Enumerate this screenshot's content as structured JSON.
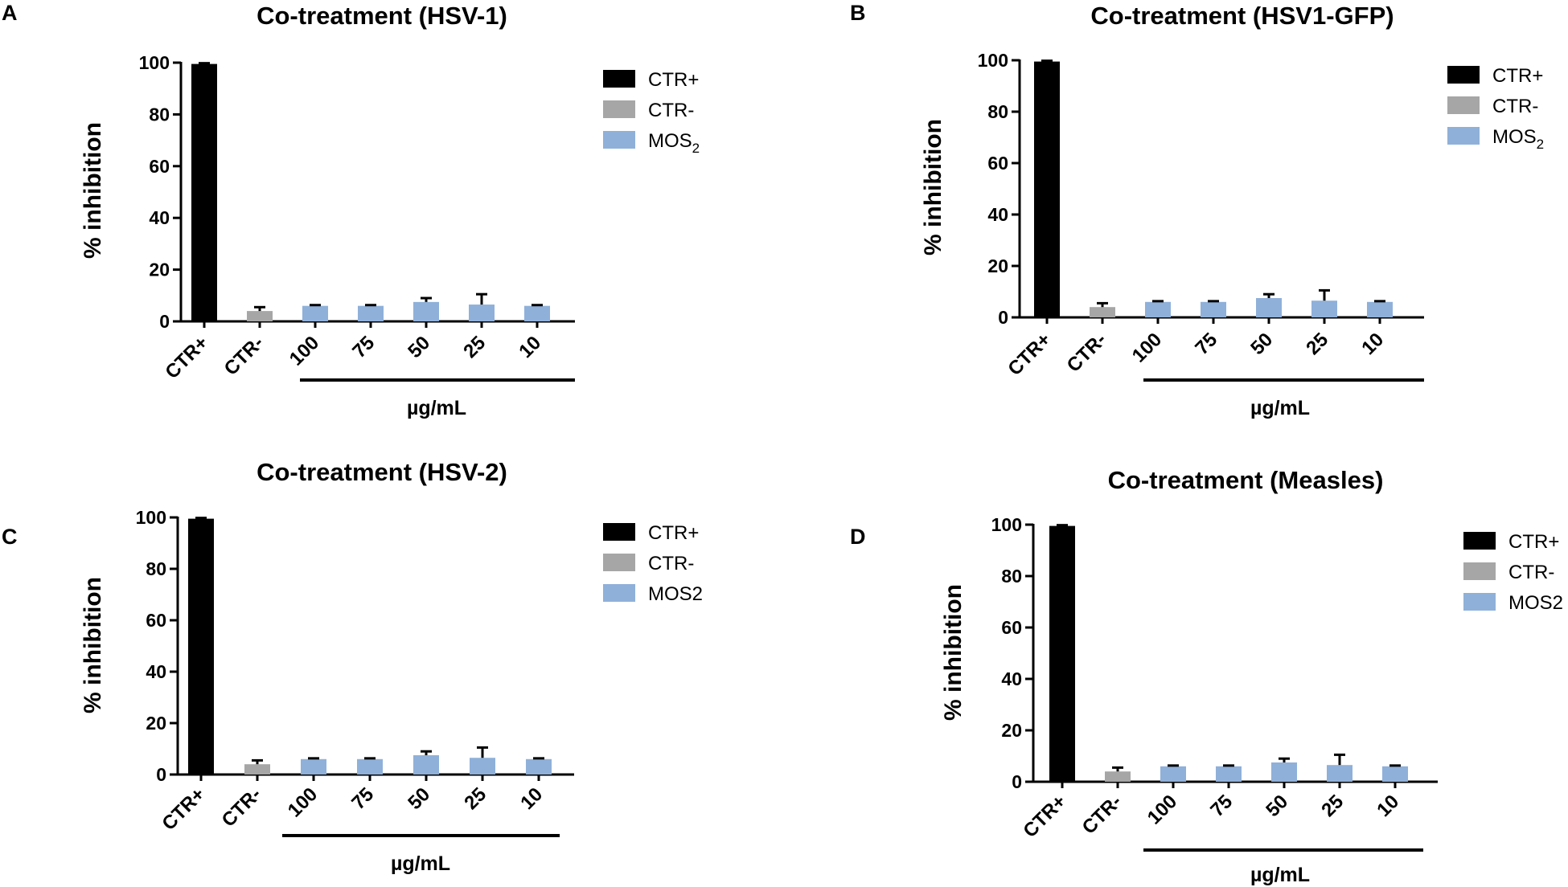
{
  "chart_data": [
    {
      "type": "bar",
      "panel": "A",
      "title": "Co-treatment (HSV-1)",
      "ylabel": "% inhibition",
      "xlabel": "µg/mL",
      "ylim": [
        0,
        100
      ],
      "yticks": [
        "0",
        "20",
        "40",
        "60",
        "80",
        "100"
      ],
      "categories": [
        "CTR+",
        "CTR-",
        "100",
        "75",
        "50",
        "25",
        "10"
      ],
      "values": [
        99.5,
        4,
        6,
        6,
        7.5,
        6.5,
        6
      ],
      "errors": [
        0.3,
        1.5,
        0.3,
        0.3,
        1.5,
        4,
        0.3
      ],
      "bar_series": [
        "CTR+",
        "CTR-",
        "MOS2",
        "MOS2",
        "MOS2",
        "MOS2",
        "MOS2"
      ],
      "legend": [
        {
          "name": "CTR+",
          "label": "CTR+",
          "color": "#000000"
        },
        {
          "name": "CTR-",
          "label": "CTR-",
          "color": "#a6a6a6"
        },
        {
          "name": "MOS2",
          "label": "MOS",
          "sub": "2",
          "color": "#8fb0d9"
        }
      ]
    },
    {
      "type": "bar",
      "panel": "B",
      "title": "Co-treatment (HSV1-GFP)",
      "ylabel": "% inhibition",
      "xlabel": "µg/mL",
      "ylim": [
        0,
        100
      ],
      "yticks": [
        "0",
        "20",
        "40",
        "60",
        "80",
        "100"
      ],
      "categories": [
        "CTR+",
        "CTR-",
        "100",
        "75",
        "50",
        "25",
        "10"
      ],
      "values": [
        99.5,
        4,
        6,
        6,
        7.5,
        6.5,
        6
      ],
      "errors": [
        0.3,
        1.5,
        0.3,
        0.3,
        1.5,
        4,
        0.3
      ],
      "bar_series": [
        "CTR+",
        "CTR-",
        "MOS2",
        "MOS2",
        "MOS2",
        "MOS2",
        "MOS2"
      ],
      "legend": [
        {
          "name": "CTR+",
          "label": "CTR+",
          "color": "#000000"
        },
        {
          "name": "CTR-",
          "label": "CTR-",
          "color": "#a6a6a6"
        },
        {
          "name": "MOS2",
          "label": "MOS",
          "sub": "2",
          "color": "#8fb0d9"
        }
      ]
    },
    {
      "type": "bar",
      "panel": "C",
      "title": "Co-treatment (HSV-2)",
      "ylabel": "% inhibition",
      "xlabel": "µg/mL",
      "ylim": [
        0,
        100
      ],
      "yticks": [
        "0",
        "20",
        "40",
        "60",
        "80",
        "100"
      ],
      "categories": [
        "CTR+",
        "CTR-",
        "100",
        "75",
        "50",
        "25",
        "10"
      ],
      "values": [
        99.5,
        4,
        6,
        6,
        7.5,
        6.5,
        6
      ],
      "errors": [
        0.3,
        1.5,
        0.3,
        0.3,
        1.5,
        4,
        0.3
      ],
      "bar_series": [
        "CTR+",
        "CTR-",
        "MOS2",
        "MOS2",
        "MOS2",
        "MOS2",
        "MOS2"
      ],
      "legend": [
        {
          "name": "CTR+",
          "label": "CTR+",
          "color": "#000000"
        },
        {
          "name": "CTR-",
          "label": "CTR-",
          "color": "#a6a6a6"
        },
        {
          "name": "MOS2",
          "label": "MOS2",
          "sub": "",
          "color": "#8fb0d9"
        }
      ]
    },
    {
      "type": "bar",
      "panel": "D",
      "title": "Co-treatment (Measles)",
      "ylabel": "% inhibition",
      "xlabel": "µg/mL",
      "ylim": [
        0,
        100
      ],
      "yticks": [
        "0",
        "20",
        "40",
        "60",
        "80",
        "100"
      ],
      "categories": [
        "CTR+",
        "CTR-",
        "100",
        "75",
        "50",
        "25",
        "10"
      ],
      "values": [
        99.5,
        4,
        6,
        6,
        7.5,
        6.5,
        6
      ],
      "errors": [
        0.3,
        1.5,
        0.3,
        0.3,
        1.5,
        4,
        0.3
      ],
      "bar_series": [
        "CTR+",
        "CTR-",
        "MOS2",
        "MOS2",
        "MOS2",
        "MOS2",
        "MOS2"
      ],
      "legend": [
        {
          "name": "CTR+",
          "label": "CTR+",
          "color": "#000000"
        },
        {
          "name": "CTR-",
          "label": "CTR-",
          "color": "#a6a6a6"
        },
        {
          "name": "MOS2",
          "label": "MOS2",
          "sub": "",
          "color": "#8fb0d9"
        }
      ]
    }
  ]
}
